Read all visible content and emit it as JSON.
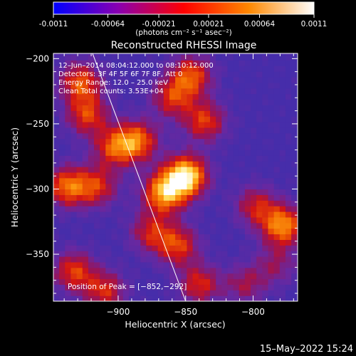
{
  "colorbar": {
    "tick_labels": [
      "-0.0011",
      "-0.00064",
      "-0.00021",
      "0.00021",
      "0.00064",
      "0.0011"
    ],
    "tick_values": [
      -0.0011,
      -0.00064,
      -0.00021,
      0.00021,
      0.00064,
      0.0011
    ],
    "unit_label": "(photons cm⁻² s⁻¹ asec⁻²)",
    "range": [
      -0.0011,
      0.0011
    ],
    "stops": [
      "#0000ff",
      "#8a00b0",
      "#ff0000",
      "#ff8800",
      "#ffffff"
    ]
  },
  "chart_data": {
    "type": "heatmap",
    "title": "Reconstructed RHESSI Image",
    "xlabel": "Heliocentric X (arcsec)",
    "ylabel": "Heliocentric Y (arcsec)",
    "xlim": [
      -948,
      -767
    ],
    "ylim": [
      -386,
      -196
    ],
    "x_ticks": [
      -900,
      -850,
      -800
    ],
    "x_tick_labels": [
      "−900",
      "−850",
      "−800"
    ],
    "y_ticks": [
      -200,
      -250,
      -300,
      -350
    ],
    "y_tick_labels": [
      "−200",
      "−250",
      "−300",
      "−350"
    ],
    "annotations": [
      "12–Jun–2014 08:04:12.000 to 08:10:12.000",
      "Detectors: 3F 4F 5F 6F 7F 8F, Att 0",
      "Energy Range: 12.0 – 25.0 keV",
      "Clean    Total counts: 3.53E+04"
    ],
    "peak_label": "Position of Peak = [−852,−292]",
    "peak": [
      -852,
      -292
    ],
    "limb_line": [
      [
        -919,
        -196
      ],
      [
        -850,
        -386
      ]
    ],
    "sources": [
      {
        "x": -852,
        "y": -292,
        "intensity": 1.0
      },
      {
        "x": -868,
        "y": -305,
        "intensity": 0.8
      },
      {
        "x": -888,
        "y": -265,
        "intensity": 0.65
      },
      {
        "x": -905,
        "y": -270,
        "intensity": 0.55
      },
      {
        "x": -930,
        "y": -220,
        "intensity": 0.6
      },
      {
        "x": -925,
        "y": -245,
        "intensity": 0.55
      },
      {
        "x": -940,
        "y": -300,
        "intensity": 0.65
      },
      {
        "x": -918,
        "y": -300,
        "intensity": 0.5
      },
      {
        "x": -848,
        "y": -215,
        "intensity": 0.6
      },
      {
        "x": -838,
        "y": -250,
        "intensity": 0.55
      },
      {
        "x": -862,
        "y": -232,
        "intensity": 0.5
      },
      {
        "x": -858,
        "y": -345,
        "intensity": 0.55
      },
      {
        "x": -842,
        "y": -375,
        "intensity": 0.5
      },
      {
        "x": -878,
        "y": -335,
        "intensity": 0.45
      },
      {
        "x": -780,
        "y": -330,
        "intensity": 0.75
      },
      {
        "x": -800,
        "y": -315,
        "intensity": 0.45
      },
      {
        "x": -935,
        "y": -365,
        "intensity": 0.55
      },
      {
        "x": -912,
        "y": -380,
        "intensity": 0.5
      },
      {
        "x": -808,
        "y": -375,
        "intensity": 0.35
      },
      {
        "x": -785,
        "y": -360,
        "intensity": 0.3
      }
    ]
  },
  "footer": {
    "date": "15–May–2022 15:24"
  }
}
